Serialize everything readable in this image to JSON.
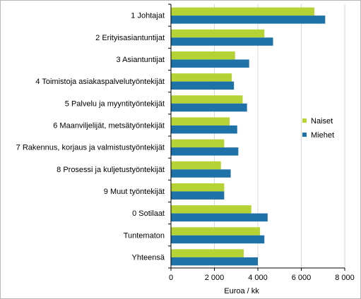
{
  "chart_data": {
    "type": "bar",
    "orientation": "horizontal",
    "categories": [
      "1 Johtajat",
      "2 Erityisasiantuntijat",
      "3 Asiantuntijat",
      "4 Toimistoja asiakaspalvelutyöntekijät",
      "5 Palvelu ja myyntityöntekijät",
      "6 Maanviljelijät, metsätyöntekijät",
      "7 Rakennus, korjaus ja valmistustyöntekijät",
      "8 Prosessi ja kuljetustyöntekijät",
      "9 Muut työntekijät",
      "0 Sotilaat",
      "Tuntematon",
      "Yhteensä"
    ],
    "series": [
      {
        "name": "Naiset",
        "color": "#b5d334",
        "values": [
          6600,
          4300,
          2950,
          2800,
          3300,
          2700,
          2450,
          2300,
          2450,
          3700,
          4100,
          3350
        ]
      },
      {
        "name": "Miehet",
        "color": "#1f72a8",
        "values": [
          7100,
          4700,
          3600,
          2900,
          3500,
          3050,
          3100,
          2750,
          2450,
          4450,
          4300,
          4000
        ]
      }
    ],
    "xlabel": "Euroa / kk",
    "ylabel": "",
    "xlim": [
      0,
      8000
    ],
    "xticks": [
      0,
      2000,
      4000,
      6000,
      8000
    ],
    "xtick_labels": [
      "0",
      "2 000",
      "4 000",
      "6 000",
      "8 000"
    ],
    "grid": "vertical",
    "grid_color": "#d9d9d9",
    "legend_position": "right"
  }
}
